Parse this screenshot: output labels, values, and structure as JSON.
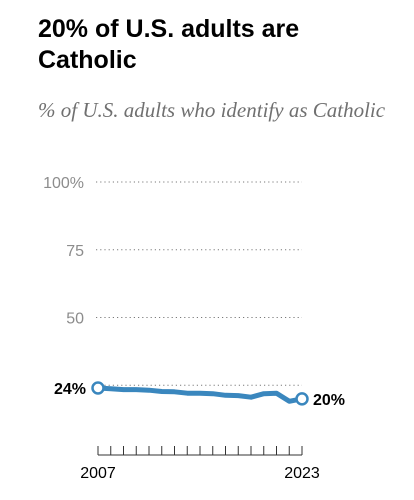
{
  "header": {
    "title": "20% of U.S. adults are Catholic",
    "subtitle": "% of U.S. adults who identify as Catholic"
  },
  "chart_data": {
    "type": "line",
    "title": "20% of U.S. adults are Catholic",
    "subtitle": "% of U.S. adults who identify as Catholic",
    "xlabel": "",
    "ylabel": "",
    "x": [
      2007,
      2008,
      2009,
      2010,
      2011,
      2012,
      2013,
      2014,
      2015,
      2016,
      2017,
      2018,
      2019,
      2020,
      2021,
      2022,
      2023
    ],
    "series": [
      {
        "values": [
          24,
          23.7,
          23.4,
          23.4,
          23.2,
          22.7,
          22.6,
          22.1,
          22.1,
          21.9,
          21.3,
          21.2,
          20.6,
          21.9,
          22.1,
          19.1,
          20
        ]
      }
    ],
    "ylim": [
      0,
      100
    ],
    "yticks": [
      50,
      75,
      100
    ],
    "ytick_labels": [
      "50",
      "75",
      "100%"
    ],
    "xtick_labels": [
      "2007",
      "2023"
    ],
    "start_label": "24%",
    "end_label": "20%",
    "grid": "dotted horizontal",
    "legend": "none",
    "colors": {
      "line": "#3a87be",
      "grid": "#7a7a7a",
      "axis": "#333333"
    }
  }
}
